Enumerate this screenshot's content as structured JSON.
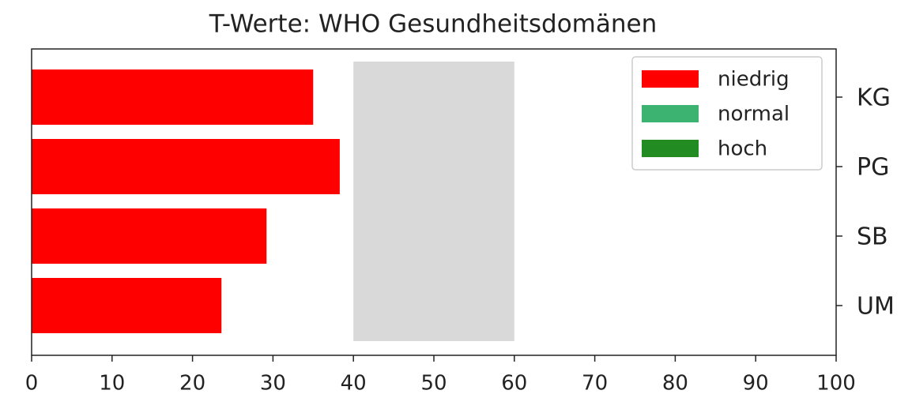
{
  "chart_data": {
    "type": "barh",
    "title": "T-Werte: WHO Gesundheitsdomänen",
    "categories": [
      "KG",
      "PG",
      "SB",
      "UM"
    ],
    "values": [
      35.0,
      38.3,
      29.2,
      23.6
    ],
    "color": "#ff0000",
    "xlim": [
      0,
      100
    ],
    "xticks": [
      0,
      10,
      20,
      30,
      40,
      50,
      60,
      70,
      80,
      90,
      100
    ],
    "band": {
      "range": [
        40,
        60
      ],
      "color": "#d9d9d9"
    },
    "legend": [
      {
        "name": "niedrig",
        "color": "#ff0000"
      },
      {
        "name": "normal",
        "color": "#3cb371"
      },
      {
        "name": "hoch",
        "color": "#228b22"
      }
    ],
    "legend_position": "upper right",
    "category_axis_side": "right"
  }
}
